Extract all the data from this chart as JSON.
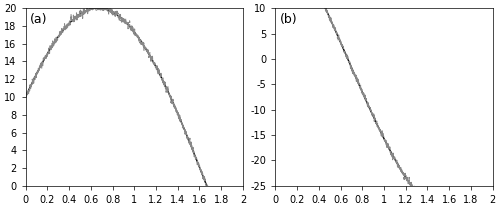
{
  "xlim": [
    0,
    2
  ],
  "subplot_a": {
    "label": "(a)",
    "ylim": [
      0,
      20
    ],
    "yticks": [
      0,
      2,
      4,
      6,
      8,
      10,
      12,
      14,
      16,
      18,
      20
    ],
    "xticks": [
      0,
      0.2,
      0.4,
      0.6,
      0.8,
      1.0,
      1.2,
      1.4,
      1.6,
      1.8,
      2.0
    ],
    "amplitude": 20,
    "phase": 0.5236,
    "omega": 3.14159
  },
  "subplot_b": {
    "label": "(b)",
    "ylim": [
      -25,
      10
    ],
    "yticks": [
      -25,
      -20,
      -15,
      -10,
      -5,
      0,
      5,
      10
    ],
    "xticks": [
      0,
      0.2,
      0.4,
      0.6,
      0.8,
      1.0,
      1.2,
      1.4,
      1.6,
      1.8,
      2.0
    ]
  },
  "noise_level": 0.01,
  "noise_seed": 42,
  "solid_color": "#000000",
  "noisy_color": "#888888",
  "solid_lw": 1.0,
  "noisy_lw": 0.8,
  "noisy_linestyle": "--",
  "figsize": [
    5.0,
    2.09
  ],
  "dpi": 100
}
